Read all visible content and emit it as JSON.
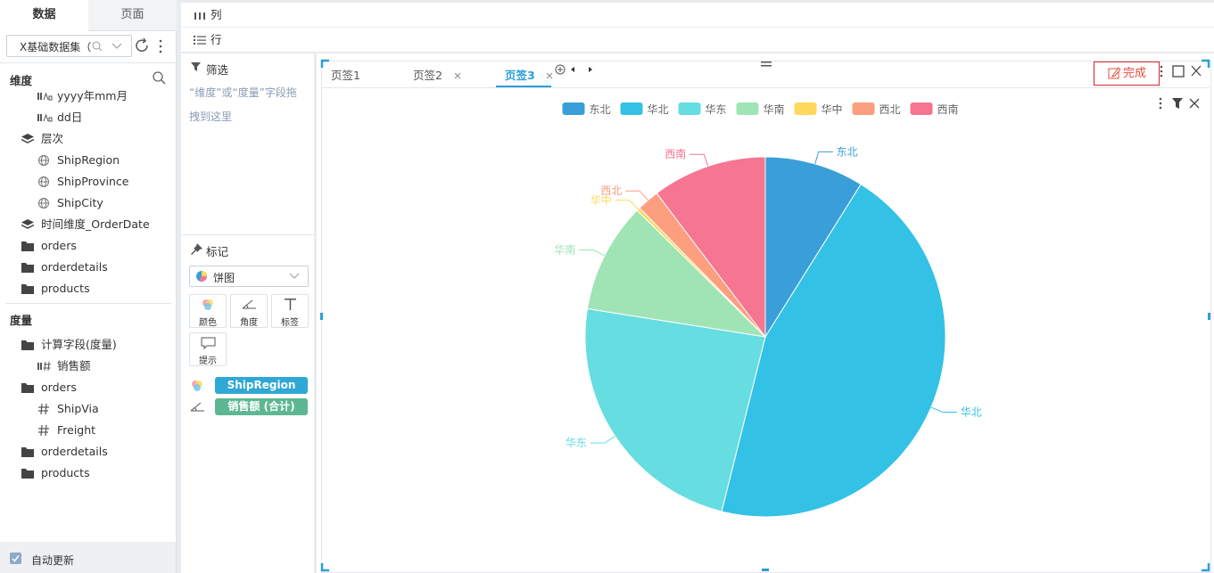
{
  "sidebar": {
    "tabs": [
      "数据",
      "页面"
    ],
    "dataset": "X基础数据集（",
    "dimensions": {
      "title": "维度",
      "items": [
        {
          "label": "yyyy年mm月",
          "icon": "date",
          "level": 2
        },
        {
          "label": "dd日",
          "icon": "date",
          "level": 2
        },
        {
          "label": "层次",
          "icon": "layers",
          "level": 1
        },
        {
          "label": "ShipRegion",
          "icon": "globe",
          "level": 2
        },
        {
          "label": "ShipProvince",
          "icon": "globe",
          "level": 2
        },
        {
          "label": "ShipCity",
          "icon": "globe",
          "level": 2
        },
        {
          "label": "时间维度_OrderDate",
          "icon": "layers",
          "level": 1
        },
        {
          "label": "orders",
          "icon": "folder",
          "level": 1
        },
        {
          "label": "orderdetails",
          "icon": "folder",
          "level": 1
        },
        {
          "label": "products",
          "icon": "folder",
          "level": 1
        }
      ]
    },
    "measures": {
      "title": "度量",
      "items": [
        {
          "label": "计算字段(度量)",
          "icon": "folder",
          "level": 1
        },
        {
          "label": "销售额",
          "icon": "measure",
          "level": 2
        },
        {
          "label": "orders",
          "icon": "folder",
          "level": 1
        },
        {
          "label": "ShipVia",
          "icon": "hash",
          "level": 2
        },
        {
          "label": "Freight",
          "icon": "hash",
          "level": 2
        },
        {
          "label": "orderdetails",
          "icon": "folder",
          "level": 1
        },
        {
          "label": "products",
          "icon": "folder",
          "level": 1
        }
      ]
    },
    "auto_update": "自动更新"
  },
  "shelves": {
    "columns": "列",
    "rows": "行"
  },
  "filter": {
    "title": "筛选",
    "hint": "“维度”或“度量”字段拖拽到这里"
  },
  "marks": {
    "title": "标记",
    "chart_type": "饼图",
    "buttons": [
      "颜色",
      "角度",
      "标签",
      "提示"
    ],
    "fields": [
      {
        "label": "ShipRegion",
        "color": "#2fa8d5"
      },
      {
        "label": "销售额 (合计)",
        "color": "#5db792"
      }
    ]
  },
  "tabs": {
    "items": [
      "页签1",
      "页签2",
      "页签3"
    ],
    "active": 2,
    "done": "完成"
  },
  "chart_data": {
    "type": "pie",
    "categories": [
      "东北",
      "华北",
      "华东",
      "华南",
      "华中",
      "西北",
      "西南"
    ],
    "values": [
      8.9,
      45.0,
      23.6,
      9.9,
      0.3,
      2.0,
      10.3
    ],
    "colors": [
      "#3a9fd8",
      "#33c1e6",
      "#66dde0",
      "#a0e4b6",
      "#fdd95c",
      "#fd9e7e",
      "#f67591"
    ]
  }
}
